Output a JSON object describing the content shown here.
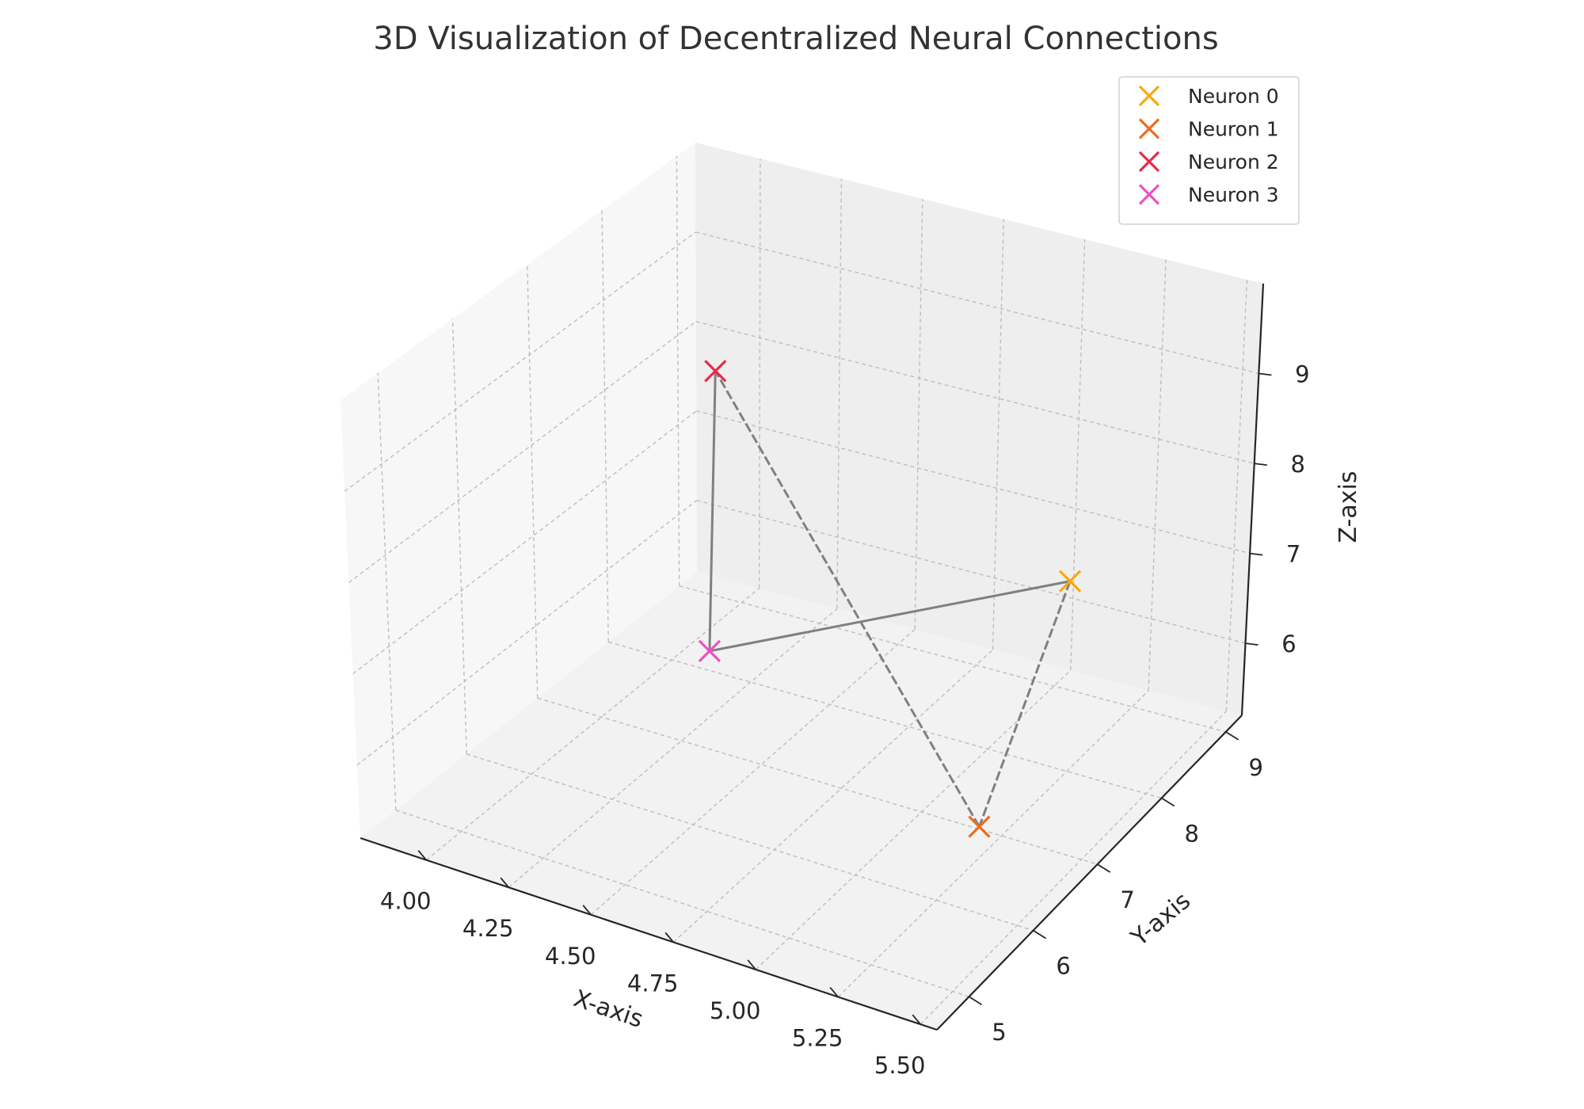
{
  "chart_data": {
    "type": "scatter",
    "projection": "3d",
    "title": "3D Visualization of Decentralized Neural Connections",
    "xlabel": "X-axis",
    "ylabel": "Y-axis",
    "zlabel": "Z-axis",
    "xlim": [
      3.8,
      5.55
    ],
    "ylim": [
      4.5,
      9.25
    ],
    "zlim": [
      5.2,
      10.0
    ],
    "xticks": [
      "4.00",
      "4.25",
      "4.50",
      "4.75",
      "5.00",
      "5.25",
      "5.50"
    ],
    "yticks": [
      "5",
      "6",
      "7",
      "8",
      "9"
    ],
    "zticks": [
      "6",
      "7",
      "8",
      "9"
    ],
    "grid": true,
    "legend_position": "top-right",
    "marker": "x",
    "series": [
      {
        "name": "Neuron 0",
        "color": "#f7a90d",
        "x": 5.03,
        "y": 9.05,
        "z": 6.36
      },
      {
        "name": "Neuron 1",
        "color": "#ec6b20",
        "x": 5.27,
        "y": 6.55,
        "z": 5.65
      },
      {
        "name": "Neuron 2",
        "color": "#e8294b",
        "x": 4.33,
        "y": 7.15,
        "z": 9.3
      },
      {
        "name": "Neuron 3",
        "color": "#f04fbf",
        "x": 4.27,
        "y": 7.32,
        "z": 6.01
      }
    ],
    "connections": [
      {
        "from": 0,
        "to": 1,
        "style": "dashed"
      },
      {
        "from": 1,
        "to": 2,
        "style": "dashed"
      },
      {
        "from": 2,
        "to": 3,
        "style": "solid"
      },
      {
        "from": 3,
        "to": 0,
        "style": "solid"
      }
    ]
  }
}
